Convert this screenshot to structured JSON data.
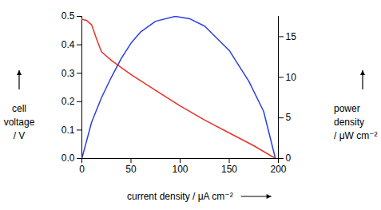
{
  "chart_data": {
    "type": "line",
    "xlabel": "current density / μA cm⁻²",
    "ylabel": "cell voltage / V",
    "y2label": "power density / μW cm⁻²",
    "xlim": [
      0,
      200
    ],
    "xticks": [
      0,
      50,
      100,
      150,
      200
    ],
    "ylim": [
      0,
      0.5
    ],
    "yticks": [
      {
        "value": 0,
        "label": "0.0"
      },
      0.1,
      0.2,
      0.3,
      0.4,
      0.5
    ],
    "y2lim": [
      0,
      17.5
    ],
    "y2ticks": [
      0,
      5,
      10,
      15
    ],
    "grid": false,
    "series": [
      {
        "color": "#e8312a",
        "axis": "y",
        "x": [
          0,
          5,
          10,
          15,
          20,
          30,
          50,
          75,
          100,
          125,
          150,
          175,
          197
        ],
        "values": [
          0.49,
          0.485,
          0.47,
          0.42,
          0.375,
          0.345,
          0.295,
          0.24,
          0.185,
          0.135,
          0.09,
          0.045,
          0
        ]
      },
      {
        "color": "#2b3fe0",
        "axis": "y2",
        "x": [
          0,
          10,
          20,
          30,
          40,
          50,
          60,
          75,
          95,
          110,
          125,
          150,
          170,
          185,
          197
        ],
        "values": [
          0,
          4.5,
          7.5,
          10,
          12.3,
          14.2,
          15.6,
          16.9,
          17.5,
          17.2,
          16.3,
          13.3,
          9.5,
          5.8,
          0
        ]
      }
    ]
  }
}
